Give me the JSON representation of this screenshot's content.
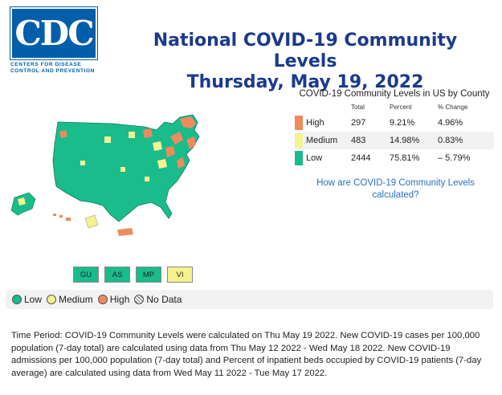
{
  "logo": {
    "text": "CDC",
    "subtitle_line1": "CENTERS FOR DISEASE",
    "subtitle_line2": "CONTROL AND PREVENTION"
  },
  "title": {
    "line1": "National COVID-19 Community Levels",
    "line2": "Thursday, May 19, 2022"
  },
  "table": {
    "title": "COVID-19 Community Levels in US by County",
    "headers": [
      "",
      "Total",
      "Percent",
      "% Change"
    ],
    "rows": [
      {
        "level": "High",
        "total": "297",
        "percent": "9.21%",
        "change": "4.96%",
        "color": "#f08a5d"
      },
      {
        "level": "Medium",
        "total": "483",
        "percent": "14.98%",
        "change": "0.83%",
        "color": "#f5f28f"
      },
      {
        "level": "Low",
        "total": "2444",
        "percent": "75.81%",
        "change": "– 5.79%",
        "color": "#1abc8c"
      }
    ]
  },
  "link": {
    "line1": "How are COVID-19 Community Levels",
    "line2": "calculated?"
  },
  "territories": [
    {
      "label": "GU",
      "color": "#1abc8c"
    },
    {
      "label": "AS",
      "color": "#1abc8c"
    },
    {
      "label": "MP",
      "color": "#1abc8c"
    },
    {
      "label": "VI",
      "color": "#f5f28f"
    }
  ],
  "legend": [
    {
      "label": "Low",
      "color": "#1abc8c"
    },
    {
      "label": "Medium",
      "color": "#f5f28f"
    },
    {
      "label": "High",
      "color": "#f08a5d"
    },
    {
      "label": "No Data",
      "color": "hatch"
    }
  ],
  "footer": "Time Period: COVID-19 Community Levels were calculated on Thu May 19 2022. New COVID-19 cases per 100,000 population (7-day total) are calculated using data from Thu May 12 2022 - Wed May 18 2022. New COVID-19 admissions per 100,000 population (7-day total) and Percent of inpatient beds occupied by COVID-19 patients (7-day average) are calculated using data from Wed May 11 2022 - Tue May 17 2022."
}
